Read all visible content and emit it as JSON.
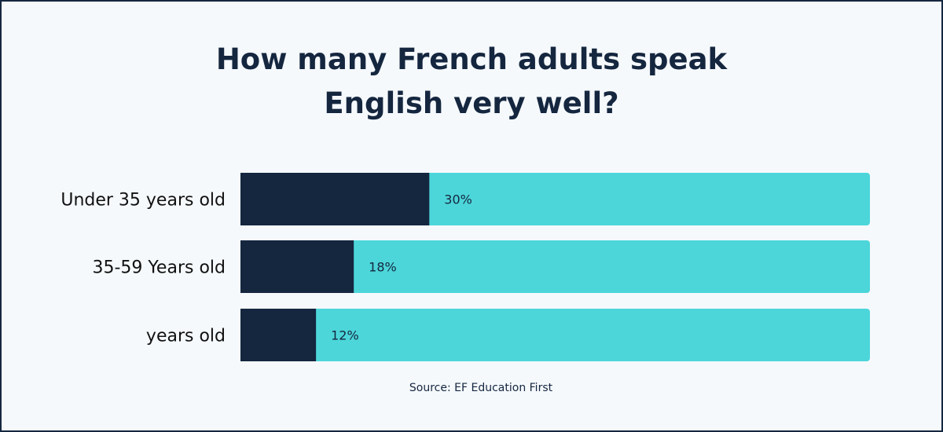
{
  "title_lines": [
    "How many French adults speak",
    "English very well?"
  ],
  "source": "Source: EF Education First",
  "colors": {
    "value": "#15263f",
    "remainder": "#4cd6d9",
    "background": "#f5f9fc"
  },
  "chart_data": {
    "type": "bar",
    "orientation": "horizontal",
    "stacked_to_100": true,
    "title": "How many French adults speak English very well?",
    "categories": [
      "Under 35 years old",
      "35-59 Years old",
      "years old"
    ],
    "values": [
      30,
      18,
      12
    ],
    "data_labels": [
      "30%",
      "18%",
      "12%"
    ],
    "xlim": [
      0,
      100
    ],
    "grid": false,
    "xlabel": "",
    "ylabel": ""
  }
}
